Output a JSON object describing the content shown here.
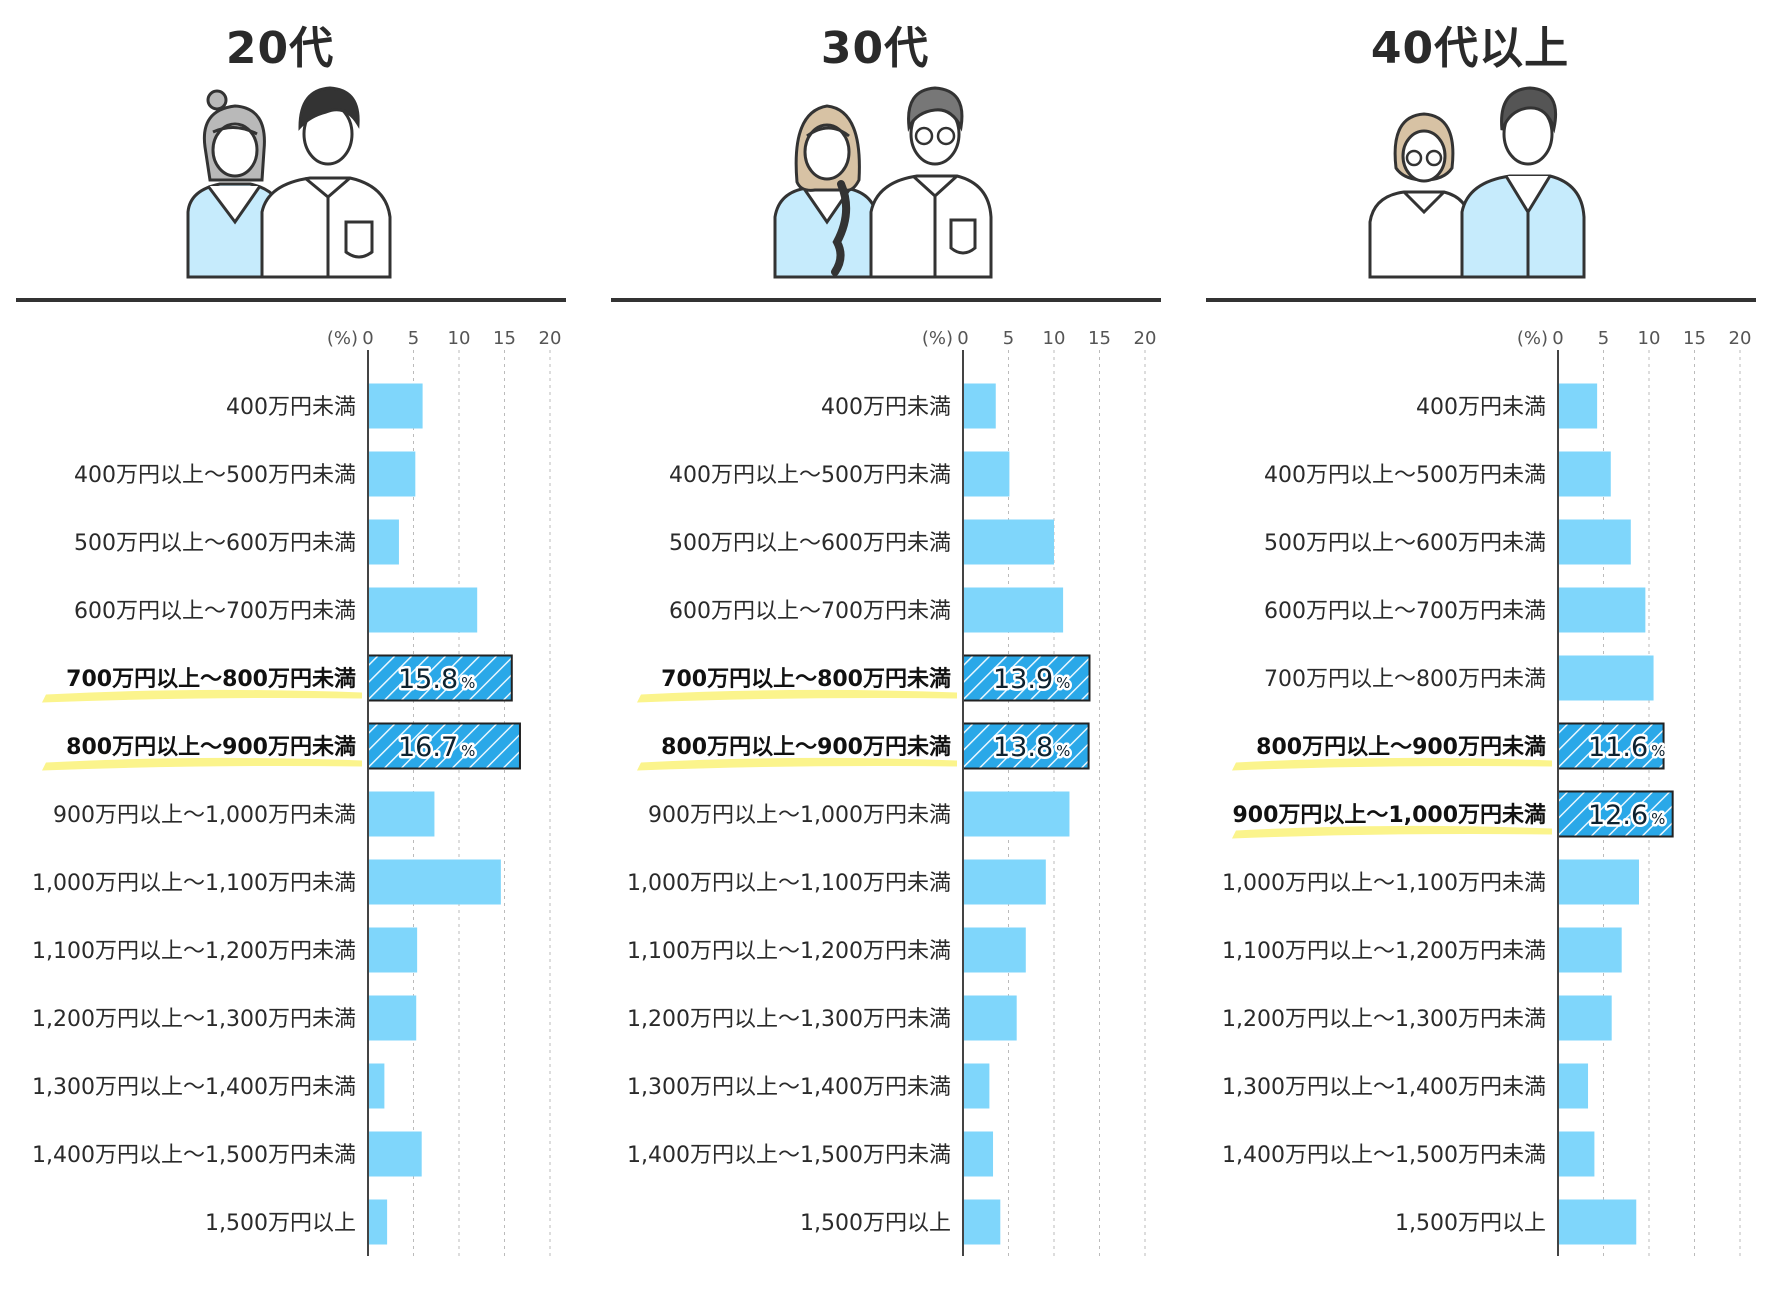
{
  "chart_data": [
    {
      "type": "bar",
      "title": "20代",
      "unit_label": "(%)",
      "xlim": [
        0,
        20
      ],
      "ticks": [
        "0",
        "5",
        "10",
        "15",
        "20"
      ],
      "categories": [
        "400万円未満",
        "400万円以上〜500万円未満",
        "500万円以上〜600万円未満",
        "600万円以上〜700万円未満",
        "700万円以上〜800万円未満",
        "800万円以上〜900万円未満",
        "900万円以上〜1,000万円未満",
        "1,000万円以上〜1,100万円未満",
        "1,100万円以上〜1,200万円未満",
        "1,200万円以上〜1,300万円未満",
        "1,300万円以上〜1,400万円未満",
        "1,400万円以上〜1,500万円未満",
        "1,500万円以上"
      ],
      "values": [
        6.0,
        5.2,
        3.4,
        12.0,
        15.8,
        16.7,
        7.3,
        14.6,
        5.4,
        5.3,
        1.8,
        5.9,
        2.1
      ],
      "highlight": [
        4,
        5
      ],
      "data_labels": [
        {
          "index": 4,
          "text": "15.8",
          "unit": "%"
        },
        {
          "index": 5,
          "text": "16.7",
          "unit": "%"
        }
      ],
      "bar_color": "#7fd6fb",
      "highlight_color": "#2aa8e8",
      "marker_color": "#fbf48c"
    },
    {
      "type": "bar",
      "title": "30代",
      "unit_label": "(%)",
      "xlim": [
        0,
        20
      ],
      "ticks": [
        "0",
        "5",
        "10",
        "15",
        "20"
      ],
      "categories": [
        "400万円未満",
        "400万円以上〜500万円未満",
        "500万円以上〜600万円未満",
        "600万円以上〜700万円未満",
        "700万円以上〜800万円未満",
        "800万円以上〜900万円未満",
        "900万円以上〜1,000万円未満",
        "1,000万円以上〜1,100万円未満",
        "1,100万円以上〜1,200万円未満",
        "1,200万円以上〜1,300万円未満",
        "1,300万円以上〜1,400万円未満",
        "1,400万円以上〜1,500万円未満",
        "1,500万円以上"
      ],
      "values": [
        3.6,
        5.1,
        10.0,
        11.0,
        13.9,
        13.8,
        11.7,
        9.1,
        6.9,
        5.9,
        2.9,
        3.3,
        4.1
      ],
      "highlight": [
        4,
        5
      ],
      "data_labels": [
        {
          "index": 4,
          "text": "13.9",
          "unit": "%"
        },
        {
          "index": 5,
          "text": "13.8",
          "unit": "%"
        }
      ],
      "bar_color": "#7fd6fb",
      "highlight_color": "#2aa8e8",
      "marker_color": "#fbf48c"
    },
    {
      "type": "bar",
      "title": "40代以上",
      "unit_label": "(%)",
      "xlim": [
        0,
        20
      ],
      "ticks": [
        "0",
        "5",
        "10",
        "15",
        "20"
      ],
      "categories": [
        "400万円未満",
        "400万円以上〜500万円未満",
        "500万円以上〜600万円未満",
        "600万円以上〜700万円未満",
        "700万円以上〜800万円未満",
        "800万円以上〜900万円未満",
        "900万円以上〜1,000万円未満",
        "1,000万円以上〜1,100万円未満",
        "1,100万円以上〜1,200万円未満",
        "1,200万円以上〜1,300万円未満",
        "1,300万円以上〜1,400万円未満",
        "1,400万円以上〜1,500万円未満",
        "1,500万円以上"
      ],
      "values": [
        4.3,
        5.8,
        8.0,
        9.6,
        10.5,
        11.6,
        12.6,
        8.9,
        7.0,
        5.9,
        3.3,
        4.0,
        8.6
      ],
      "highlight": [
        5,
        6
      ],
      "data_labels": [
        {
          "index": 5,
          "text": "11.6",
          "unit": "%"
        },
        {
          "index": 6,
          "text": "12.6",
          "unit": "%"
        }
      ],
      "bar_color": "#7fd6fb",
      "highlight_color": "#2aa8e8",
      "marker_color": "#fbf48c"
    }
  ],
  "illustrations": [
    {
      "icon": "young-couple-illustration"
    },
    {
      "icon": "thirties-couple-illustration"
    },
    {
      "icon": "forties-couple-illustration"
    }
  ]
}
